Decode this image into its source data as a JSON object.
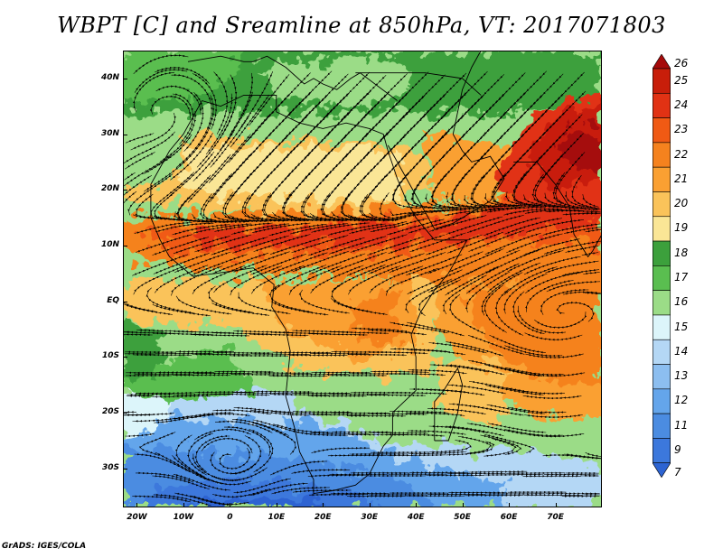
{
  "title": "WBPT [C] and Sreamline at 850hPa, VT: 2017071803",
  "credit": "GrADS: IGES/COLA",
  "map": {
    "lon_range": [
      -23,
      80
    ],
    "lat_range": [
      -37,
      45
    ],
    "y_ticks": [
      {
        "lat": 40,
        "label": "40N"
      },
      {
        "lat": 30,
        "label": "30N"
      },
      {
        "lat": 20,
        "label": "20N"
      },
      {
        "lat": 10,
        "label": "10N"
      },
      {
        "lat": 0,
        "label": "EQ"
      },
      {
        "lat": -10,
        "label": "10S"
      },
      {
        "lat": -20,
        "label": "20S"
      },
      {
        "lat": -30,
        "label": "30S"
      }
    ],
    "x_ticks": [
      {
        "lon": -20,
        "label": "20W"
      },
      {
        "lon": -10,
        "label": "10W"
      },
      {
        "lon": 0,
        "label": "0"
      },
      {
        "lon": 10,
        "label": "10E"
      },
      {
        "lon": 20,
        "label": "20E"
      },
      {
        "lon": 30,
        "label": "30E"
      },
      {
        "lon": 40,
        "label": "40E"
      },
      {
        "lon": 50,
        "label": "50E"
      },
      {
        "lon": 60,
        "label": "60E"
      },
      {
        "lon": 70,
        "label": "70E"
      }
    ]
  },
  "colorbar": {
    "levels": [
      {
        "label": "26",
        "color": "#a50a0a"
      },
      {
        "label": "25",
        "color": "#c81e0a"
      },
      {
        "label": "24",
        "color": "#e13214"
      },
      {
        "label": "23",
        "color": "#f05a14"
      },
      {
        "label": "22",
        "color": "#f5821e"
      },
      {
        "label": "21",
        "color": "#faa032"
      },
      {
        "label": "20",
        "color": "#fac35a"
      },
      {
        "label": "19",
        "color": "#fae696"
      },
      {
        "label": "18",
        "color": "#3ca03c"
      },
      {
        "label": "17",
        "color": "#5abe50"
      },
      {
        "label": "16",
        "color": "#9bdc87"
      },
      {
        "label": "15",
        "color": "#dcf5fa"
      },
      {
        "label": "14",
        "color": "#b4d7f5"
      },
      {
        "label": "13",
        "color": "#8cbef0"
      },
      {
        "label": "12",
        "color": "#64a5eb"
      },
      {
        "label": "11",
        "color": "#4b8ce1"
      },
      {
        "label": "9",
        "color": "#3c78dc"
      },
      {
        "label": "7",
        "color": "#2d64d2"
      }
    ]
  }
}
